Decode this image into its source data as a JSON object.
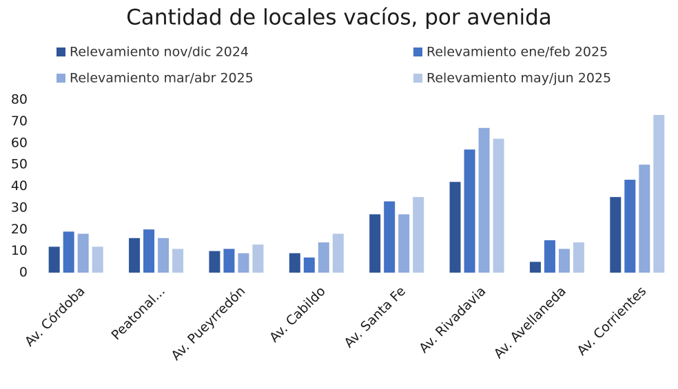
{
  "chart_data": {
    "type": "bar",
    "title": "Cantidad de locales vacíos, por avenida",
    "categories": [
      "Av. Córdoba",
      "Peatonal...",
      "Av. Pueyrredón",
      "Av. Cabildo",
      "Av. Santa Fe",
      "Av. Rivadavia",
      "Av. Avellaneda",
      "Av. Corrientes"
    ],
    "series": [
      {
        "name": "Relevamiento nov/dic 2024",
        "color": "#2f5597",
        "values": [
          12,
          16,
          10,
          9,
          27,
          42,
          5,
          35
        ]
      },
      {
        "name": "Relevamiento ene/feb 2025",
        "color": "#4472c4",
        "values": [
          19,
          20,
          11,
          7,
          33,
          57,
          15,
          43
        ]
      },
      {
        "name": "Relevamiento mar/abr 2025",
        "color": "#8faadc",
        "values": [
          18,
          16,
          9,
          14,
          27,
          67,
          11,
          50
        ]
      },
      {
        "name": "Relevamiento may/jun 2025",
        "color": "#b4c7e7",
        "values": [
          12,
          11,
          13,
          18,
          35,
          62,
          14,
          73
        ]
      }
    ],
    "ylim": [
      0,
      80
    ],
    "yticks": [
      0,
      10,
      20,
      30,
      40,
      50,
      60,
      70,
      80
    ],
    "grid": false
  }
}
